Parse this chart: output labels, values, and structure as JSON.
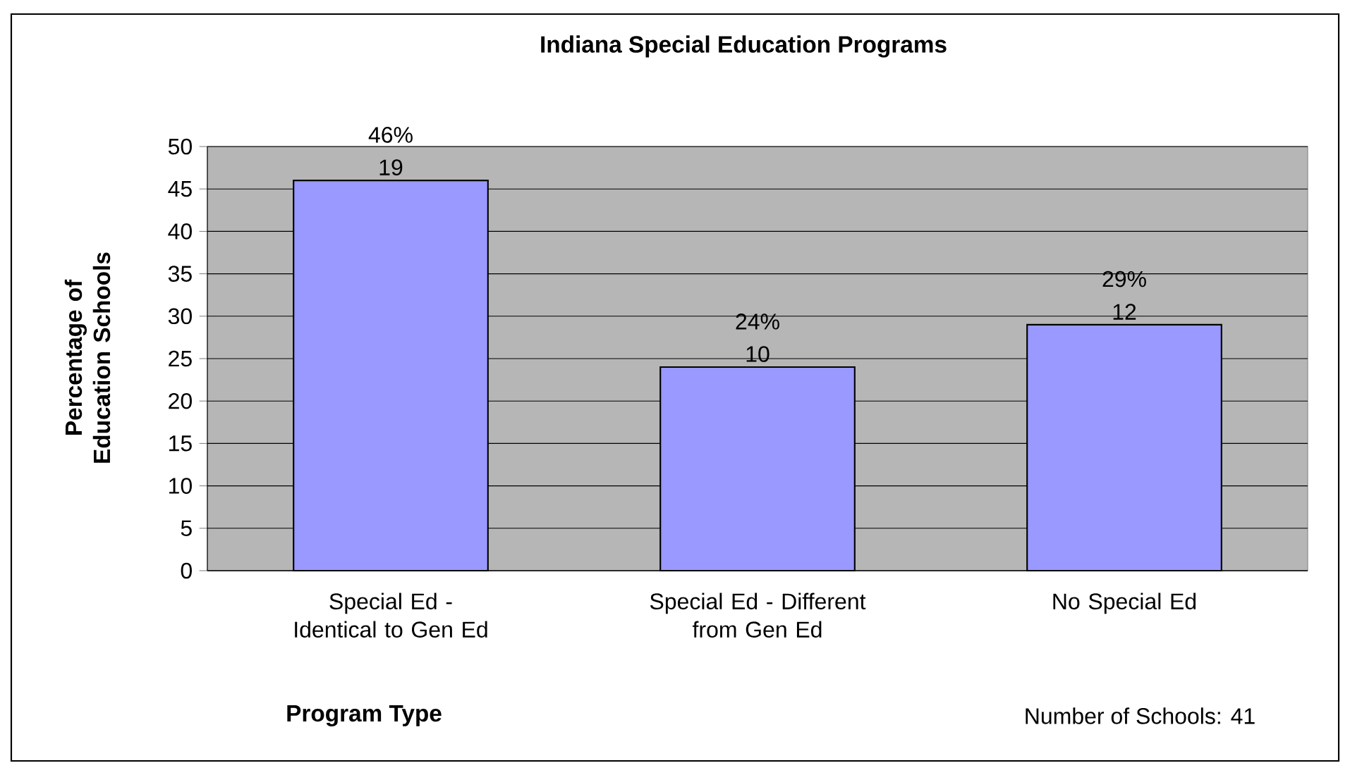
{
  "chart_data": {
    "type": "bar",
    "title": "Indiana Special Education Programs",
    "xlabel": "Program Type",
    "ylabel": "Percentage of Education Schools",
    "categories": [
      "Special Ed - Identical to Gen Ed",
      "Special Ed - Different from Gen Ed",
      "No Special Ed"
    ],
    "values": [
      46,
      24,
      29
    ],
    "color": "#9999ff",
    "value_labels": [
      "46%",
      "24%",
      "29%"
    ],
    "annotations": [
      {
        "text": "19",
        "x": "Special Ed - Identical to Gen Ed",
        "y": 46
      },
      {
        "text": "10",
        "x": "Special Ed - Different from Gen Ed",
        "y": 24
      },
      {
        "text": "12",
        "x": "No Special Ed",
        "y": 29
      },
      "Number of Schools: 41"
    ],
    "ylim": [
      0,
      50
    ],
    "yticks": [
      0,
      5,
      10,
      15,
      20,
      25,
      30,
      35,
      40,
      45,
      50
    ],
    "grid": "y"
  }
}
